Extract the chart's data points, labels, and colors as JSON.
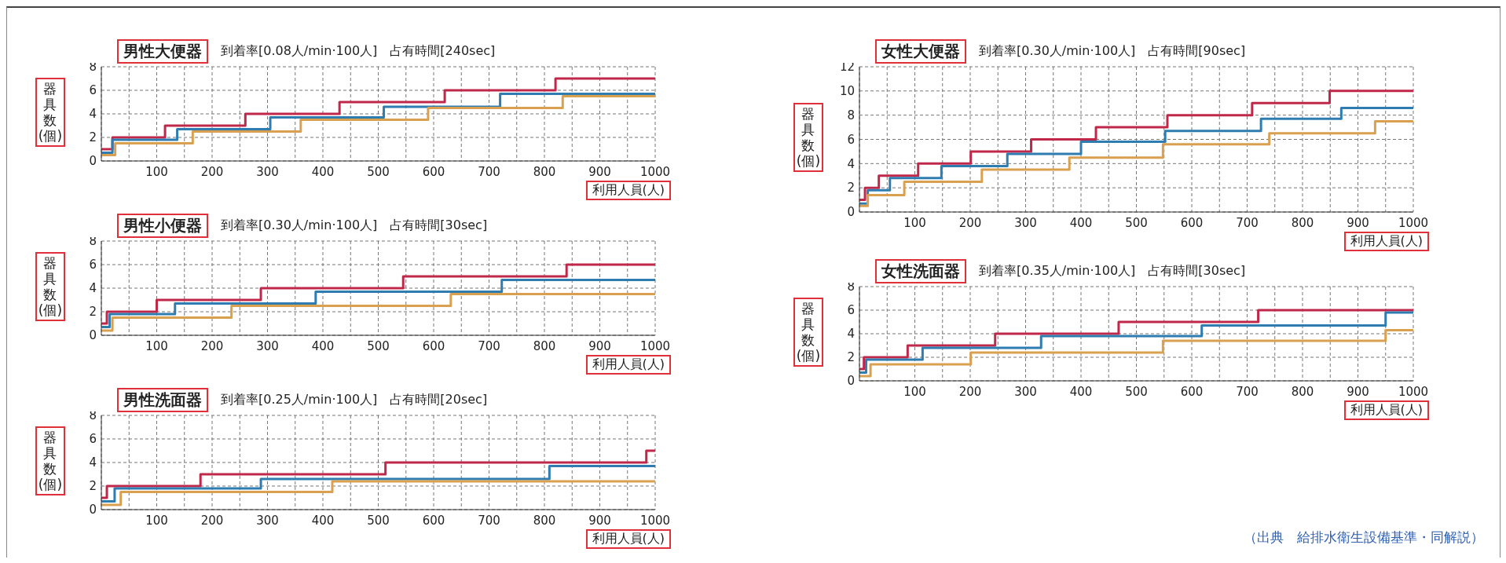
{
  "chart_data": [
    {
      "type": "step",
      "title": "男性大便器",
      "subtitle": "到着率[0.08人/min·100人]　占有時間[240sec]",
      "xlabel": "利用人員(人)",
      "ylabel": "器具数(個)",
      "xlim": [
        0,
        1000
      ],
      "xticks": [
        {
          "value": 0,
          "label": null
        },
        {
          "value": 50,
          "label": null
        },
        100,
        {
          "value": 150,
          "label": null
        },
        200,
        {
          "value": 250,
          "label": null
        },
        300,
        {
          "value": 350,
          "label": null
        },
        400,
        {
          "value": 450,
          "label": null
        },
        500,
        {
          "value": 550,
          "label": null
        },
        600,
        {
          "value": 650,
          "label": null
        },
        700,
        {
          "value": 750,
          "label": null
        },
        800,
        {
          "value": 850,
          "label": null
        },
        900,
        {
          "value": 950,
          "label": null
        },
        1000
      ],
      "ylim": [
        0,
        8
      ],
      "yticks": [
        0,
        2,
        4,
        6,
        8
      ],
      "grid": true,
      "series": [
        {
          "color": "#c0284a",
          "x": [
            0,
            20,
            115,
            260,
            430,
            620,
            820,
            1000
          ],
          "values": [
            1,
            2,
            3,
            4,
            5,
            6,
            7,
            7
          ]
        },
        {
          "color": "#2f7db0",
          "x": [
            0,
            20,
            137,
            305,
            510,
            720,
            1000
          ],
          "values": [
            0.7,
            1.8,
            2.7,
            3.7,
            4.6,
            5.7,
            5.7
          ]
        },
        {
          "color": "#d9a050",
          "x": [
            0,
            25,
            165,
            360,
            590,
            833,
            1000
          ],
          "values": [
            0.5,
            1.5,
            2.5,
            3.5,
            4.5,
            5.5,
            5.5
          ]
        }
      ]
    },
    {
      "type": "step",
      "title": "男性小便器",
      "subtitle": "到着率[0.30人/min·100人]　占有時間[30sec]",
      "xlabel": "利用人員(人)",
      "ylabel": "器具数(個)",
      "xlim": [
        0,
        1000
      ],
      "xticks": [
        {
          "value": 0,
          "label": null
        },
        {
          "value": 50,
          "label": null
        },
        100,
        {
          "value": 150,
          "label": null
        },
        200,
        {
          "value": 250,
          "label": null
        },
        300,
        {
          "value": 350,
          "label": null
        },
        400,
        {
          "value": 450,
          "label": null
        },
        500,
        {
          "value": 550,
          "label": null
        },
        600,
        {
          "value": 650,
          "label": null
        },
        700,
        {
          "value": 750,
          "label": null
        },
        800,
        {
          "value": 850,
          "label": null
        },
        900,
        {
          "value": 950,
          "label": null
        },
        1000
      ],
      "ylim": [
        0,
        8
      ],
      "yticks": [
        0,
        2,
        4,
        6,
        8
      ],
      "grid": true,
      "series": [
        {
          "color": "#c0284a",
          "x": [
            0,
            10,
            100,
            288,
            545,
            840,
            1000
          ],
          "values": [
            1,
            2,
            3,
            4,
            5,
            6,
            6
          ]
        },
        {
          "color": "#2f7db0",
          "x": [
            0,
            15,
            133,
            387,
            723,
            1000
          ],
          "values": [
            0.7,
            1.8,
            2.7,
            3.7,
            4.7,
            4.7
          ]
        },
        {
          "color": "#d9a050",
          "x": [
            0,
            20,
            235,
            631,
            1000
          ],
          "values": [
            0.4,
            1.5,
            2.5,
            3.5,
            3.5
          ]
        }
      ]
    },
    {
      "type": "step",
      "title": "男性洗面器",
      "subtitle": "到着率[0.25人/min·100人]　占有時間[20sec]",
      "xlabel": "利用人員(人)",
      "ylabel": "器具数(個)",
      "xlim": [
        0,
        1000
      ],
      "xticks": [
        {
          "value": 0,
          "label": null
        },
        {
          "value": 50,
          "label": null
        },
        100,
        {
          "value": 150,
          "label": null
        },
        200,
        {
          "value": 250,
          "label": null
        },
        300,
        {
          "value": 350,
          "label": null
        },
        400,
        {
          "value": 450,
          "label": null
        },
        500,
        {
          "value": 550,
          "label": null
        },
        600,
        {
          "value": 650,
          "label": null
        },
        700,
        {
          "value": 750,
          "label": null
        },
        800,
        {
          "value": 850,
          "label": null
        },
        900,
        {
          "value": 950,
          "label": null
        },
        1000
      ],
      "ylim": [
        0,
        8
      ],
      "yticks": [
        0,
        2,
        4,
        6,
        8
      ],
      "grid": true,
      "series": [
        {
          "color": "#c0284a",
          "x": [
            0,
            10,
            179,
            513,
            984,
            1000
          ],
          "values": [
            1,
            2,
            3,
            4,
            5,
            5
          ]
        },
        {
          "color": "#2f7db0",
          "x": [
            0,
            24,
            288,
            809,
            1000
          ],
          "values": [
            0.7,
            1.8,
            2.6,
            3.7,
            3.7
          ]
        },
        {
          "color": "#d9a050",
          "x": [
            0,
            35,
            417,
            1000
          ],
          "values": [
            0.4,
            1.5,
            2.4,
            2.4
          ]
        }
      ]
    },
    {
      "type": "step",
      "title": "女性大便器",
      "subtitle": "到着率[0.30人/min·100人]　占有時間[90sec]",
      "xlabel": "利用人員(人)",
      "ylabel": "器具数(個)",
      "xlim": [
        0,
        1000
      ],
      "xticks": [
        {
          "value": 0,
          "label": null
        },
        {
          "value": 50,
          "label": null
        },
        100,
        {
          "value": 150,
          "label": null
        },
        200,
        {
          "value": 250,
          "label": null
        },
        300,
        {
          "value": 350,
          "label": null
        },
        400,
        {
          "value": 450,
          "label": null
        },
        500,
        {
          "value": 550,
          "label": null
        },
        600,
        {
          "value": 650,
          "label": null
        },
        700,
        {
          "value": 750,
          "label": null
        },
        800,
        {
          "value": 850,
          "label": null
        },
        900,
        {
          "value": 950,
          "label": null
        },
        1000
      ],
      "ylim": [
        0,
        12
      ],
      "yticks": [
        0,
        2,
        4,
        6,
        8,
        10,
        12
      ],
      "grid": true,
      "series": [
        {
          "color": "#c0284a",
          "x": [
            0,
            10,
            35,
            106,
            201,
            310,
            427,
            556,
            709,
            849,
            1000
          ],
          "values": [
            1,
            2,
            3,
            4,
            5,
            6,
            7,
            8,
            9,
            10,
            10
          ]
        },
        {
          "color": "#2f7db0",
          "x": [
            0,
            15,
            55,
            148,
            267,
            400,
            552,
            725,
            870,
            1000
          ],
          "values": [
            0.7,
            1.8,
            2.8,
            3.8,
            4.8,
            5.8,
            6.7,
            7.7,
            8.6,
            8.6
          ]
        },
        {
          "color": "#d9a050",
          "x": [
            0,
            15,
            81,
            221,
            379,
            548,
            740,
            931,
            1000
          ],
          "values": [
            0.5,
            1.4,
            2.5,
            3.5,
            4.5,
            5.6,
            6.5,
            7.5,
            7.5
          ]
        }
      ]
    },
    {
      "type": "step",
      "title": "女性洗面器",
      "subtitle": "到着率[0.35人/min·100人]　占有時間[30sec]",
      "xlabel": "利用人員(人)",
      "ylabel": "器具数(個)",
      "xlim": [
        0,
        1000
      ],
      "xticks": [
        {
          "value": 0,
          "label": null
        },
        {
          "value": 50,
          "label": null
        },
        100,
        {
          "value": 150,
          "label": null
        },
        200,
        {
          "value": 250,
          "label": null
        },
        300,
        {
          "value": 350,
          "label": null
        },
        400,
        {
          "value": 450,
          "label": null
        },
        500,
        {
          "value": 550,
          "label": null
        },
        600,
        {
          "value": 650,
          "label": null
        },
        700,
        {
          "value": 750,
          "label": null
        },
        800,
        {
          "value": 850,
          "label": null
        },
        900,
        {
          "value": 950,
          "label": null
        },
        1000
      ],
      "ylim": [
        0,
        8
      ],
      "yticks": [
        0,
        2,
        4,
        6,
        8
      ],
      "grid": true,
      "series": [
        {
          "color": "#c0284a",
          "x": [
            0,
            8,
            87,
            245,
            468,
            720,
            1000
          ],
          "values": [
            1,
            2,
            3,
            4,
            5,
            6,
            6
          ]
        },
        {
          "color": "#2f7db0",
          "x": [
            0,
            12,
            114,
            328,
            618,
            950,
            1000
          ],
          "values": [
            0.7,
            1.8,
            2.8,
            3.8,
            4.7,
            5.8,
            5.8
          ]
        },
        {
          "color": "#d9a050",
          "x": [
            0,
            20,
            201,
            548,
            950,
            1000
          ],
          "values": [
            0.4,
            1.4,
            2.4,
            3.4,
            4.3,
            4.3
          ]
        }
      ],
      "annotations": [
        "（出典　給排水衛生設備基準・同解説）"
      ]
    }
  ]
}
